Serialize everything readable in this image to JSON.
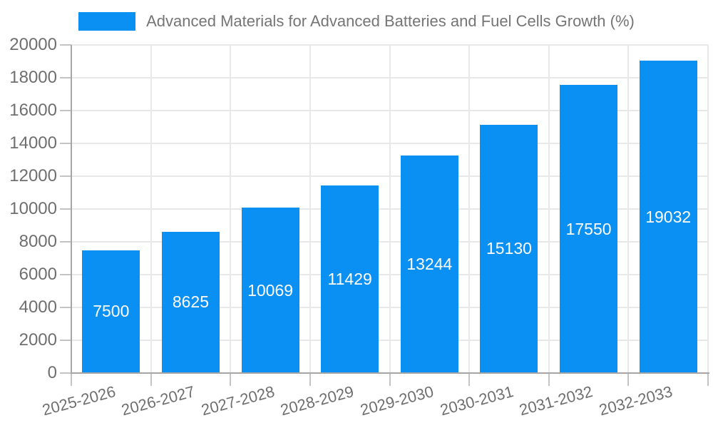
{
  "chart_data": {
    "type": "bar",
    "title": "Advanced Materials for Advanced Batteries and Fuel Cells Growth (%)",
    "categories": [
      "2025-2026",
      "2026-2027",
      "2027-2028",
      "2028-2029",
      "2029-2030",
      "2030-2031",
      "2031-2032",
      "2032-2033"
    ],
    "values": [
      7500,
      8625,
      10069,
      11429,
      13244,
      15130,
      17550,
      19032
    ],
    "value_labels": [
      "7500",
      "8625",
      "10069",
      "11429",
      "13244",
      "15130",
      "17550",
      "19032"
    ],
    "xlabel": "",
    "ylabel": "",
    "ylim": [
      0,
      20000
    ],
    "yticks": [
      0,
      2000,
      4000,
      6000,
      8000,
      10000,
      12000,
      14000,
      16000,
      18000,
      20000
    ],
    "grid": true,
    "legend_position": "top",
    "colors": {
      "bar": "#0A8FF2",
      "bar_label": "#FFFFFF",
      "legend_text": "#757575",
      "axis_text": "#6F6F6F",
      "gridline": "#E8E8E8",
      "tick": "#C4C4C4",
      "axis_line": "#A6A6A6",
      "background": "#FFFFFF"
    }
  }
}
